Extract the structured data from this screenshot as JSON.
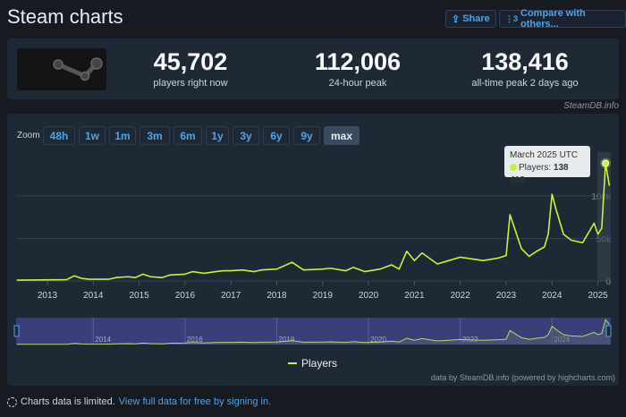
{
  "header": {
    "title": "Steam charts",
    "share_label": "Share",
    "compare_label": "Compare with others..."
  },
  "stats": [
    {
      "value": "45,702",
      "label": "players right now"
    },
    {
      "value": "112,006",
      "label": "24-hour peak"
    },
    {
      "value": "138,416",
      "label": "all-time peak 2 days ago"
    }
  ],
  "credit": "SteamDB.info",
  "zoom": {
    "label": "Zoom",
    "options": [
      "48h",
      "1w",
      "1m",
      "3m",
      "6m",
      "1y",
      "3y",
      "6y",
      "9y",
      "max"
    ],
    "selected": "max"
  },
  "tooltip": {
    "date": "March 2025 UTC",
    "series": "Players:",
    "value": "138 416"
  },
  "legend": "Players",
  "attribution": "data by SteamDB.info (powered by highcharts.com)",
  "footer": {
    "notice": "Charts data is limited.",
    "link": "View full data for free by signing in."
  },
  "colors": {
    "line": "#c6f432",
    "accent": "#4fa3e6",
    "navigator": "#3a3f7a"
  },
  "chart_data": {
    "type": "line",
    "series": [
      {
        "name": "Players",
        "points": [
          [
            "2012-05",
            1
          ],
          [
            "2013-06",
            1.5
          ],
          [
            "2013-08",
            6
          ],
          [
            "2013-10",
            3
          ],
          [
            "2013-12",
            2
          ],
          [
            "2014-05",
            2
          ],
          [
            "2014-07",
            4
          ],
          [
            "2014-10",
            5
          ],
          [
            "2014-12",
            4
          ],
          [
            "2015-02",
            8
          ],
          [
            "2015-04",
            5
          ],
          [
            "2015-07",
            4
          ],
          [
            "2015-09",
            7
          ],
          [
            "2016-01",
            8
          ],
          [
            "2016-03",
            11
          ],
          [
            "2016-06",
            9
          ],
          [
            "2016-09",
            11
          ],
          [
            "2016-11",
            12
          ],
          [
            "2017-01",
            12
          ],
          [
            "2017-04",
            13
          ],
          [
            "2017-07",
            11
          ],
          [
            "2017-09",
            13
          ],
          [
            "2018-01",
            14
          ],
          [
            "2018-05",
            22
          ],
          [
            "2018-08",
            13
          ],
          [
            "2019-01",
            14
          ],
          [
            "2019-03",
            15
          ],
          [
            "2019-07",
            12
          ],
          [
            "2019-09",
            16
          ],
          [
            "2019-12",
            11
          ],
          [
            "2020-04",
            14
          ],
          [
            "2020-07",
            19
          ],
          [
            "2020-09",
            14
          ],
          [
            "2020-11",
            35
          ],
          [
            "2021-01",
            24
          ],
          [
            "2021-03",
            33
          ],
          [
            "2021-07",
            20
          ],
          [
            "2021-10",
            24
          ],
          [
            "2022-01",
            28
          ],
          [
            "2022-07",
            24
          ],
          [
            "2022-11",
            27
          ],
          [
            "2023-01",
            30
          ],
          [
            "2023-02",
            78
          ],
          [
            "2023-05",
            38
          ],
          [
            "2023-07",
            29
          ],
          [
            "2023-09",
            35
          ],
          [
            "2023-11",
            40
          ],
          [
            "2023-12",
            55
          ],
          [
            "2024-01",
            102
          ],
          [
            "2024-02",
            85
          ],
          [
            "2024-04",
            55
          ],
          [
            "2024-06",
            48
          ],
          [
            "2024-09",
            45
          ],
          [
            "2024-12",
            68
          ],
          [
            "2025-01",
            55
          ],
          [
            "2025-02",
            62
          ],
          [
            "2025-03",
            138.416
          ],
          [
            "2025-04",
            112
          ]
        ]
      }
    ],
    "y_unit": "thousands",
    "yticks": [
      "0",
      "50k",
      "100k"
    ],
    "xticks": [
      "2013",
      "2014",
      "2015",
      "2016",
      "2017",
      "2018",
      "2019",
      "2020",
      "2021",
      "2022",
      "2023",
      "2024",
      "2025"
    ],
    "navigator_ticks": [
      "2014",
      "2016",
      "2018",
      "2020",
      "2022",
      "2024"
    ],
    "ylim": [
      0,
      140
    ],
    "grid": true,
    "legend_position": "bottom-center"
  }
}
